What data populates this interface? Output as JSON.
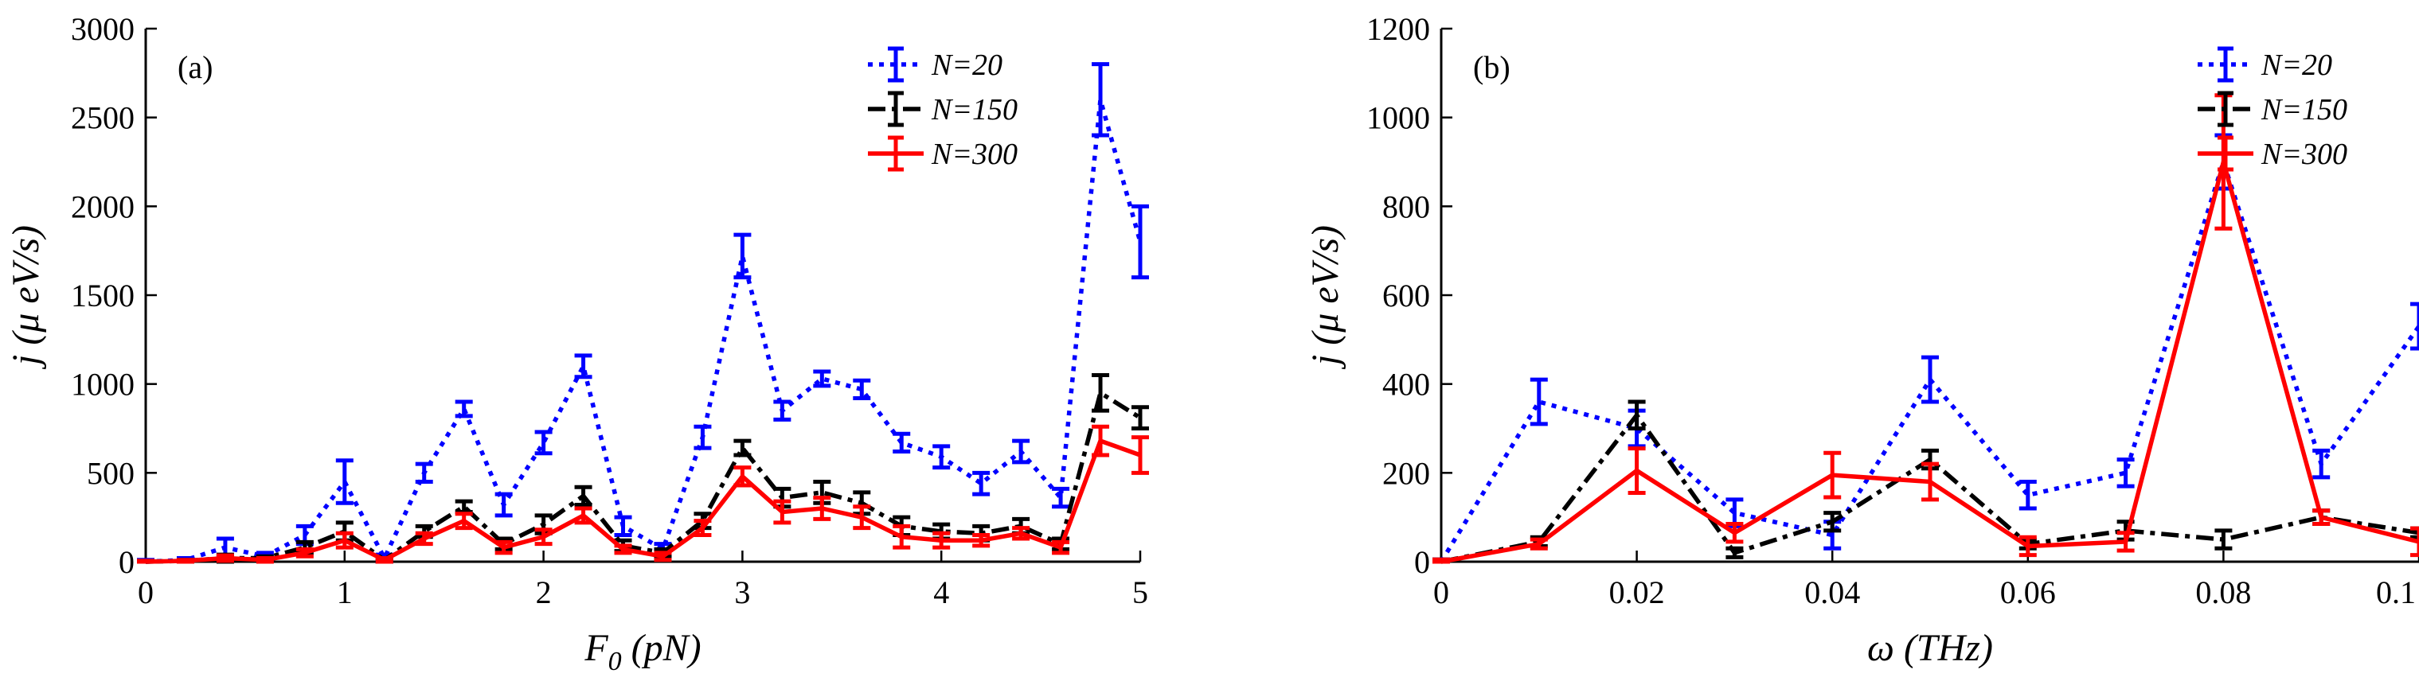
{
  "chart_data": [
    {
      "type": "line",
      "panel_label": "(a)",
      "xlabel": "F_0 (pN)",
      "xlabel_parts": {
        "main": "F",
        "sub": "0",
        "unit": " (pN)"
      },
      "ylabel": "j (μ eV/s)",
      "xlim": [
        0,
        5
      ],
      "ylim": [
        0,
        3000
      ],
      "xticks": [
        0,
        1,
        2,
        3,
        4,
        5
      ],
      "yticks": [
        0,
        500,
        1000,
        1500,
        2000,
        2500,
        3000
      ],
      "grid": false,
      "legend_position": "top-right",
      "x": [
        0,
        0.2,
        0.4,
        0.6,
        0.8,
        1.0,
        1.2,
        1.4,
        1.6,
        1.8,
        2.0,
        2.2,
        2.4,
        2.6,
        2.8,
        3.0,
        3.2,
        3.4,
        3.6,
        3.8,
        4.0,
        4.2,
        4.4,
        4.6,
        4.8,
        5.0
      ],
      "series": [
        {
          "name": "N=20",
          "color": "#0000ff",
          "dash": "dotted",
          "values": [
            0,
            10,
            80,
            30,
            150,
            450,
            20,
            500,
            860,
            320,
            670,
            1100,
            200,
            70,
            700,
            1720,
            850,
            1030,
            970,
            670,
            590,
            440,
            620,
            360,
            2600,
            1800
          ],
          "errors": [
            10,
            10,
            50,
            20,
            50,
            120,
            20,
            50,
            40,
            60,
            60,
            60,
            50,
            30,
            60,
            120,
            50,
            40,
            50,
            50,
            60,
            60,
            60,
            50,
            200,
            200
          ]
        },
        {
          "name": "N=150",
          "color": "#000000",
          "dash": "dashdot",
          "values": [
            0,
            5,
            20,
            20,
            80,
            170,
            10,
            170,
            310,
            100,
            210,
            370,
            90,
            50,
            230,
            640,
            360,
            390,
            330,
            200,
            170,
            160,
            200,
            100,
            950,
            810
          ],
          "errors": [
            5,
            5,
            20,
            10,
            30,
            50,
            10,
            30,
            30,
            30,
            50,
            50,
            30,
            20,
            40,
            40,
            50,
            60,
            60,
            50,
            40,
            40,
            40,
            30,
            100,
            60
          ]
        },
        {
          "name": "N=300",
          "color": "#ff0000",
          "dash": "solid",
          "values": [
            0,
            5,
            20,
            10,
            50,
            120,
            10,
            130,
            230,
            80,
            140,
            260,
            70,
            30,
            190,
            480,
            280,
            300,
            250,
            140,
            120,
            120,
            160,
            80,
            680,
            600
          ],
          "errors": [
            5,
            5,
            15,
            10,
            20,
            40,
            10,
            30,
            40,
            30,
            40,
            40,
            20,
            20,
            40,
            50,
            60,
            60,
            60,
            60,
            40,
            30,
            30,
            30,
            80,
            100
          ]
        }
      ]
    },
    {
      "type": "line",
      "panel_label": "(b)",
      "xlabel": "ω (THz)",
      "ylabel": "j (μ eV/s)",
      "xlim": [
        0,
        0.1
      ],
      "ylim": [
        0,
        1200
      ],
      "xticks": [
        0,
        0.02,
        0.04,
        0.06,
        0.08,
        0.1
      ],
      "xtick_labels": [
        "0",
        "0.02",
        "0.04",
        "0.06",
        "0.08",
        "0.1"
      ],
      "yticks": [
        0,
        200,
        400,
        600,
        800,
        1000,
        1200
      ],
      "grid": false,
      "legend_position": "top-right",
      "x": [
        0,
        0.01,
        0.02,
        0.03,
        0.04,
        0.05,
        0.06,
        0.07,
        0.08,
        0.09,
        0.1
      ],
      "series": [
        {
          "name": "N=20",
          "color": "#0000ff",
          "dash": "dotted",
          "values": [
            0,
            360,
            300,
            110,
            60,
            410,
            150,
            200,
            900,
            220,
            530
          ],
          "errors": [
            5,
            50,
            40,
            30,
            30,
            50,
            30,
            30,
            60,
            30,
            50
          ]
        },
        {
          "name": "N=150",
          "color": "#000000",
          "dash": "dashdot",
          "values": [
            0,
            45,
            330,
            20,
            90,
            230,
            40,
            70,
            50,
            100,
            65
          ],
          "errors": [
            5,
            10,
            30,
            10,
            20,
            20,
            10,
            20,
            20,
            15,
            10
          ]
        },
        {
          "name": "N=300",
          "color": "#ff0000",
          "dash": "solid",
          "values": [
            0,
            40,
            205,
            65,
            195,
            180,
            35,
            45,
            900,
            100,
            45
          ],
          "errors": [
            5,
            10,
            50,
            20,
            50,
            40,
            20,
            20,
            150,
            15,
            30
          ]
        }
      ]
    }
  ]
}
